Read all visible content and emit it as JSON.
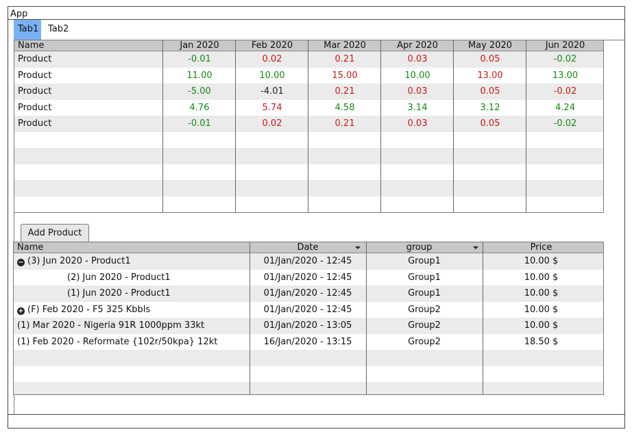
{
  "app": {
    "title": "App"
  },
  "tabs": [
    {
      "label": "Tab1"
    },
    {
      "label": "Tab2"
    }
  ],
  "summary_table": {
    "headers": [
      "Name",
      "Jan 2020",
      "Feb 2020",
      "Mar 2020",
      "Apr 2020",
      "May 2020",
      "Jun 2020"
    ],
    "rows": [
      {
        "name": "Product",
        "values": [
          {
            "v": "-0.01",
            "color": "green"
          },
          {
            "v": "0.02",
            "color": "red"
          },
          {
            "v": "0.21",
            "color": "red"
          },
          {
            "v": "0.03",
            "color": "red"
          },
          {
            "v": "0.05",
            "color": "red"
          },
          {
            "v": "-0.02",
            "color": "green"
          }
        ]
      },
      {
        "name": "Product",
        "values": [
          {
            "v": "11.00",
            "color": "green"
          },
          {
            "v": "10.00",
            "color": "green"
          },
          {
            "v": "15.00",
            "color": "red"
          },
          {
            "v": "10.00",
            "color": "green"
          },
          {
            "v": "13.00",
            "color": "red"
          },
          {
            "v": "13.00",
            "color": "green"
          }
        ]
      },
      {
        "name": "Product",
        "values": [
          {
            "v": "-5.00",
            "color": "green"
          },
          {
            "v": "-4.01",
            "color": "black"
          },
          {
            "v": "0.21",
            "color": "red"
          },
          {
            "v": "0.03",
            "color": "red"
          },
          {
            "v": "0.05",
            "color": "red"
          },
          {
            "v": "-0.02",
            "color": "red"
          }
        ]
      },
      {
        "name": "Product",
        "values": [
          {
            "v": "4.76",
            "color": "green"
          },
          {
            "v": "5.74",
            "color": "red"
          },
          {
            "v": "4.58",
            "color": "green"
          },
          {
            "v": "3.14",
            "color": "green"
          },
          {
            "v": "3.12",
            "color": "green"
          },
          {
            "v": "4.24",
            "color": "green"
          }
        ]
      },
      {
        "name": "Product",
        "values": [
          {
            "v": "-0.01",
            "color": "green"
          },
          {
            "v": "0.02",
            "color": "red"
          },
          {
            "v": "0.21",
            "color": "red"
          },
          {
            "v": "0.03",
            "color": "red"
          },
          {
            "v": "0.05",
            "color": "red"
          },
          {
            "v": "-0.02",
            "color": "green"
          }
        ]
      }
    ]
  },
  "add_button": {
    "label": "Add Product"
  },
  "detail_table": {
    "headers": [
      "Name",
      "Date",
      "group",
      "Price"
    ],
    "rows": [
      {
        "name": "(3) Jun 2020 - Product1",
        "tree": "minus-circle-icon",
        "date": "01/Jan/2020 - 12:45",
        "group": "Group1",
        "price": "10.00 $"
      },
      {
        "name": "(2) Jun 2020 - Product1",
        "tree": "",
        "date": "01/Jan/2020 - 12:45",
        "group": "Group1",
        "price": "10.00 $"
      },
      {
        "name": "(1) Jun 2020 - Product1",
        "tree": "",
        "date": "01/Jan/2020 - 12:45",
        "group": "Group1",
        "price": "10.00 $"
      },
      {
        "name": "(F) Feb 2020 - F5 325 Kbbls",
        "tree": "plus-circle-icon",
        "date": "01/Jan/2020 - 12:45",
        "group": "Group2",
        "price": "10.00 $"
      },
      {
        "name": "(1) Mar 2020 - Nigeria 91R 1000ppm 33kt",
        "tree": "",
        "date": "01/Jan/2020 - 13:05",
        "group": "Group2",
        "price": "10.00 $"
      },
      {
        "name": "(1) Feb 2020 - Reformate {102r/50kpa} 12kt",
        "tree": "",
        "date": "16/Jan/2020 - 13:15",
        "group": "Group2",
        "price": "18.50 $"
      }
    ]
  },
  "colors": {
    "green": "#138a13",
    "red": "#c81818",
    "tab_active": "#7ab1f5"
  }
}
